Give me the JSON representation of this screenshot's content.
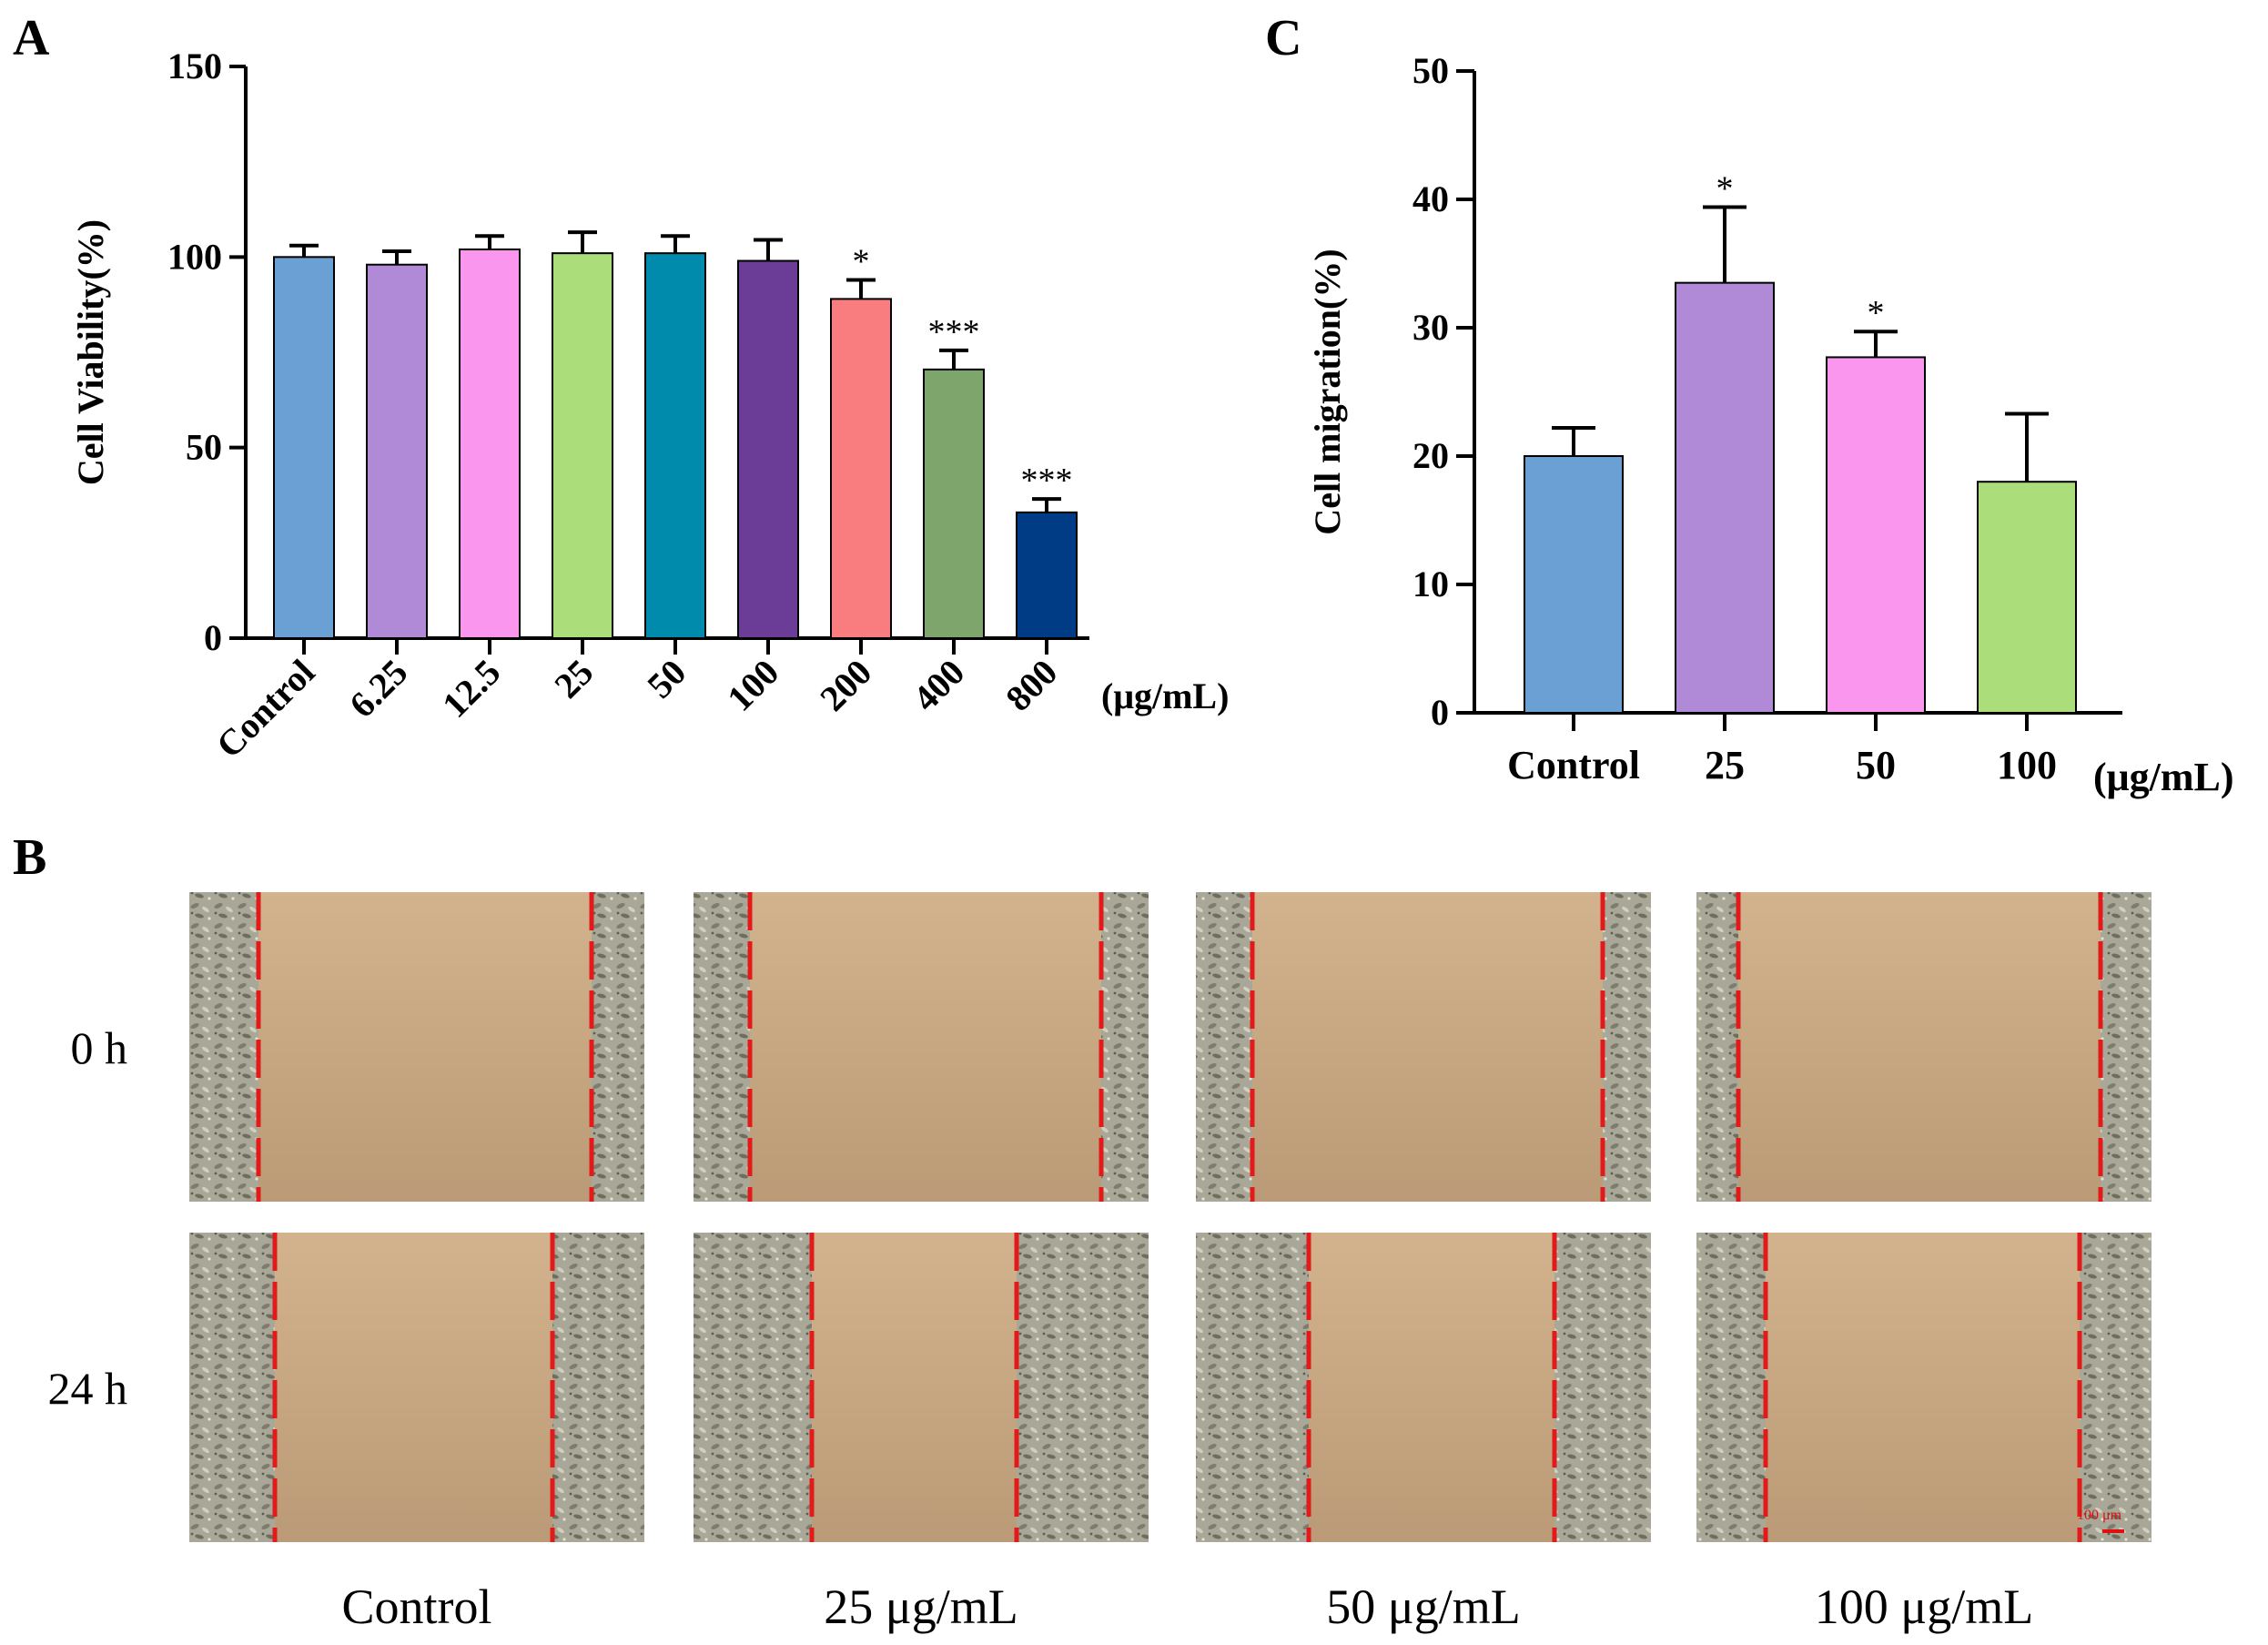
{
  "panels": {
    "A": "A",
    "B": "B",
    "C": "C"
  },
  "chart_data": [
    {
      "id": "A",
      "type": "bar",
      "ylabel": "Cell Viability(%)",
      "xlabel": "(μg/mL)",
      "ylim": [
        0,
        150
      ],
      "yticks": [
        0,
        50,
        100,
        150
      ],
      "categories": [
        "Control",
        "6.25",
        "12.5",
        "25",
        "50",
        "100",
        "200",
        "400",
        "800"
      ],
      "values": [
        100,
        98,
        102,
        101,
        101,
        99,
        89,
        70.5,
        33
      ],
      "errors": [
        3,
        3.5,
        3.5,
        5.5,
        4.5,
        5.5,
        5,
        5,
        3.5
      ],
      "significance": [
        "",
        "",
        "",
        "",
        "",
        "",
        "*",
        "***",
        "***"
      ],
      "colors": [
        "#6aa0d4",
        "#b08ad6",
        "#fb96ee",
        "#abdd7a",
        "#008aac",
        "#6b3d96",
        "#f97d7f",
        "#7ea66c",
        "#003b85"
      ]
    },
    {
      "id": "C",
      "type": "bar",
      "ylabel": "Cell migration(%)",
      "xlabel": "(μg/mL)",
      "ylim": [
        0,
        50
      ],
      "yticks": [
        0,
        10,
        20,
        30,
        40,
        50
      ],
      "categories": [
        "Control",
        "25",
        "50",
        "100"
      ],
      "values": [
        20,
        33.5,
        27.7,
        18
      ],
      "errors": [
        2.2,
        5.9,
        2,
        5.3
      ],
      "significance": [
        "",
        "*",
        "*",
        ""
      ],
      "colors": [
        "#6aa0d4",
        "#b08ad6",
        "#fb96ee",
        "#abdd7a"
      ]
    }
  ],
  "micrographs": {
    "rows": [
      "0 h",
      "24 h"
    ],
    "columns": [
      "Control",
      "25 μg/mL",
      "50 μg/mL",
      "100 μg/mL"
    ],
    "scale_bar": "100 μm",
    "colors": {
      "background": "#c7a882",
      "cells": "#9e9e8c",
      "line": "#e31a1a"
    }
  }
}
